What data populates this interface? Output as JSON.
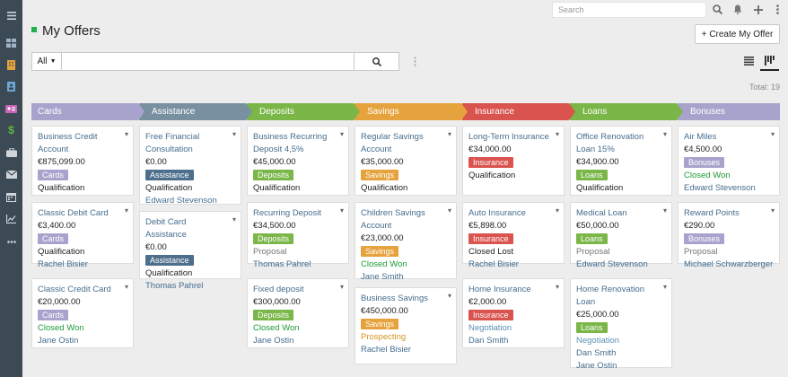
{
  "topbar": {
    "search_placeholder": "Search"
  },
  "page": {
    "title": "My Offers",
    "create_label": "+ Create My Offer",
    "total": "Total: 19"
  },
  "filter": {
    "scope": "All",
    "query": ""
  },
  "stages": [
    {
      "name": "Cards",
      "color": "#a8a3cc"
    },
    {
      "name": "Assistance",
      "color": "#7890a0"
    },
    {
      "name": "Deposits",
      "color": "#7ab648"
    },
    {
      "name": "Savings",
      "color": "#e6a23c"
    },
    {
      "name": "Insurance",
      "color": "#d9534f"
    },
    {
      "name": "Loans",
      "color": "#7ab648"
    },
    {
      "name": "Bonuses",
      "color": "#a8a3cc"
    }
  ],
  "columns": [
    {
      "cards": [
        {
          "title": "Business Credit Account",
          "amount": "€875,099.00",
          "tag": "Cards",
          "stage": "Qualification",
          "users": []
        },
        {
          "title": "Classic Debit Card",
          "amount": "€3,400.00",
          "tag": "Cards",
          "stage": "Qualification",
          "users": [
            "Rachel Bisier"
          ]
        },
        {
          "title": "Classic Credit Card",
          "amount": "€20,000.00",
          "tag": "Cards",
          "stage": "Closed Won",
          "users": [
            "Jane Ostin"
          ]
        }
      ]
    },
    {
      "cards": [
        {
          "title": "Free Financial Consultation",
          "amount": "€0.00",
          "tag": "Assistance",
          "stage": "Qualification",
          "users": [
            "Edward Stevenson"
          ]
        },
        {
          "title": "Debit Card Assistance",
          "amount": "€0.00",
          "tag": "Assistance",
          "stage": "Qualification",
          "users": [
            "Thomas Pahrel"
          ]
        }
      ]
    },
    {
      "cards": [
        {
          "title": "Business Recurring Deposit 4,5%",
          "amount": "€45,000.00",
          "tag": "Deposits",
          "stage": "Qualification",
          "users": []
        },
        {
          "title": "Recurring Deposit",
          "amount": "€34,500.00",
          "tag": "Deposits",
          "stage": "Proposal",
          "users": [
            "Thomas Pahrel"
          ]
        },
        {
          "title": "Fixed deposit",
          "amount": "€300,000.00",
          "tag": "Deposits",
          "stage": "Closed Won",
          "users": [
            "Jane Ostin"
          ]
        }
      ]
    },
    {
      "cards": [
        {
          "title": "Regular Savings Account",
          "amount": "€35,000.00",
          "tag": "Savings",
          "stage": "Qualification",
          "users": []
        },
        {
          "title": "Children Savings Account",
          "amount": "€23,000.00",
          "tag": "Savings",
          "stage": "Closed Won",
          "users": [
            "Jane Smith"
          ]
        },
        {
          "title": "Business Savings",
          "amount": "€450,000.00",
          "tag": "Savings",
          "stage": "Prospecting",
          "users": [
            "Rachel Bisier"
          ]
        }
      ]
    },
    {
      "cards": [
        {
          "title": "Long-Term Insurance",
          "amount": "€34,000.00",
          "tag": "Insurance",
          "stage": "Qualification",
          "users": []
        },
        {
          "title": "Auto Insurance",
          "amount": "€5,898.00",
          "tag": "Insurance",
          "stage": "Closed Lost",
          "users": [
            "Rachel Bisier"
          ]
        },
        {
          "title": "Home Insurance",
          "amount": "€2,000.00",
          "tag": "Insurance",
          "stage": "Negotiation",
          "users": [
            "Dan Smith"
          ]
        }
      ]
    },
    {
      "cards": [
        {
          "title": "Office Renovation Loan 15%",
          "amount": "€34,900.00",
          "tag": "Loans",
          "stage": "Qualification",
          "users": []
        },
        {
          "title": "Medical Loan",
          "amount": "€50,000.00",
          "tag": "Loans",
          "stage": "Proposal",
          "users": [
            "Edward Stevenson"
          ]
        },
        {
          "title": "Home Renovation Loan",
          "amount": "€25,000.00",
          "tag": "Loans",
          "stage": "Negotiation",
          "users": [
            "Dan Smith",
            "Jane Ostin"
          ]
        }
      ]
    },
    {
      "cards": [
        {
          "title": "Air Miles",
          "amount": "€4,500.00",
          "tag": "Bonuses",
          "stage": "Closed Won",
          "users": [
            "Edward Stevenson"
          ]
        },
        {
          "title": "Reward Points",
          "amount": "€290.00",
          "tag": "Bonuses",
          "stage": "Proposal",
          "users": [
            "Michael Schwarzberger"
          ]
        }
      ]
    }
  ],
  "icons": {
    "sidebar": [
      "menu-icon",
      "dashboard-icon",
      "building-icon",
      "contact-icon",
      "id-card-icon",
      "dollar-icon",
      "briefcase-icon",
      "mail-icon",
      "calendar-icon",
      "chart-icon",
      "more-icon"
    ],
    "topbar": [
      "search-icon",
      "bell-icon",
      "plus-icon",
      "vertical-dots-icon"
    ]
  }
}
